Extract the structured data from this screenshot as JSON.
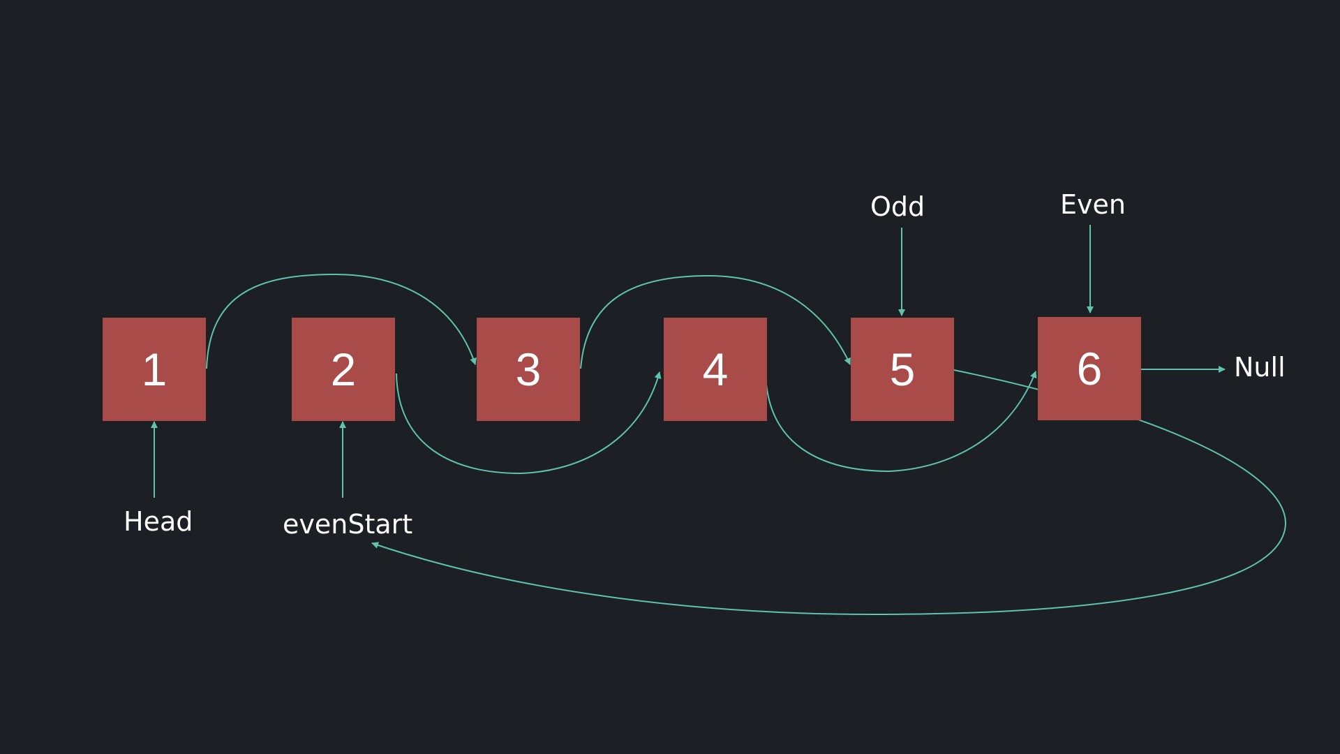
{
  "nodes": [
    {
      "value": "1"
    },
    {
      "value": "2"
    },
    {
      "value": "3"
    },
    {
      "value": "4"
    },
    {
      "value": "5"
    },
    {
      "value": "6"
    }
  ],
  "labels": {
    "head": "Head",
    "even_start": "evenStart",
    "odd": "Odd",
    "even": "Even",
    "null": "Null"
  },
  "colors": {
    "background": "#1c1f24",
    "node_fill": "#a84b49",
    "arrow": "#5ec4ae",
    "text": "#ffffff"
  }
}
